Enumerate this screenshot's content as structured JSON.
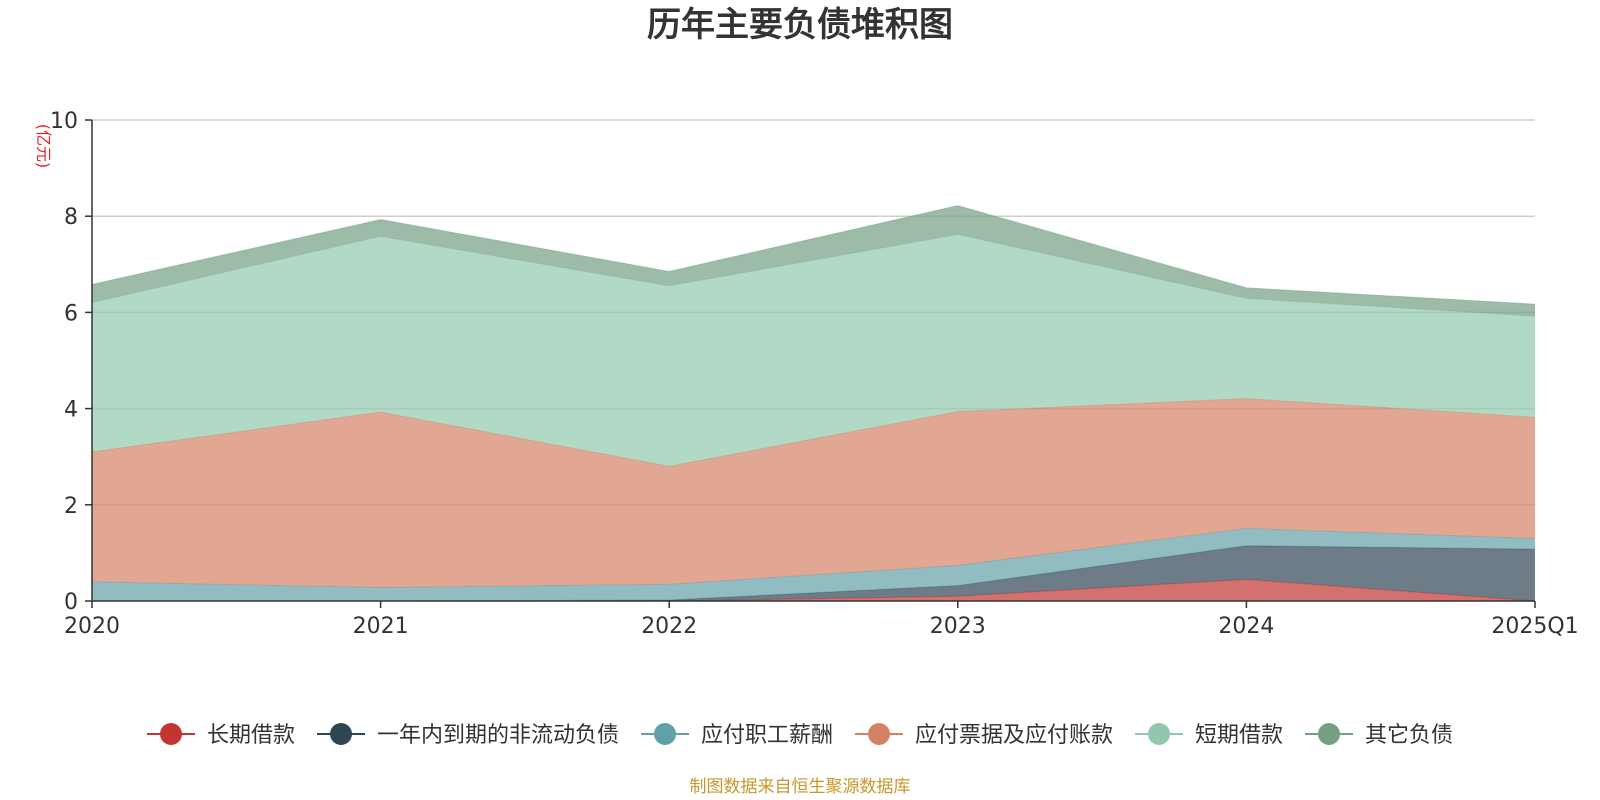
{
  "chart_data": {
    "type": "area",
    "stacked": true,
    "title": "历年主要负债堆积图",
    "unit_label": "(亿元)",
    "xlabel": "",
    "ylabel": "(亿元)",
    "ylim": [
      0,
      10
    ],
    "yticks": [
      "0",
      "2",
      "4",
      "6",
      "8",
      "10"
    ],
    "categories": [
      "2020",
      "2021",
      "2022",
      "2023",
      "2024",
      "2025Q1"
    ],
    "grid": true,
    "legend_position": "bottom",
    "series": [
      {
        "name": "长期借款",
        "color": "#c23531",
        "values": [
          0,
          0,
          0,
          0.1,
          0.45,
          0
        ]
      },
      {
        "name": "一年内到期的非流动负债",
        "color": "#2f4554",
        "values": [
          0,
          0,
          0.02,
          0.22,
          0.7,
          1.08
        ]
      },
      {
        "name": "应付职工薪酬",
        "color": "#61a0a8",
        "values": [
          0.4,
          0.28,
          0.33,
          0.42,
          0.36,
          0.22
        ]
      },
      {
        "name": "应付票据及应付账款",
        "color": "#d48265",
        "values": [
          2.7,
          3.65,
          2.45,
          3.2,
          2.7,
          2.52
        ]
      },
      {
        "name": "短期借款",
        "color": "#91c7ae",
        "values": [
          3.1,
          3.65,
          3.75,
          3.68,
          2.08,
          2.1
        ]
      },
      {
        "name": "其它负债",
        "color": "#749f83",
        "values": [
          0.38,
          0.35,
          0.3,
          0.6,
          0.22,
          0.25
        ]
      }
    ],
    "source": "制图数据来自恒生聚源数据库"
  }
}
